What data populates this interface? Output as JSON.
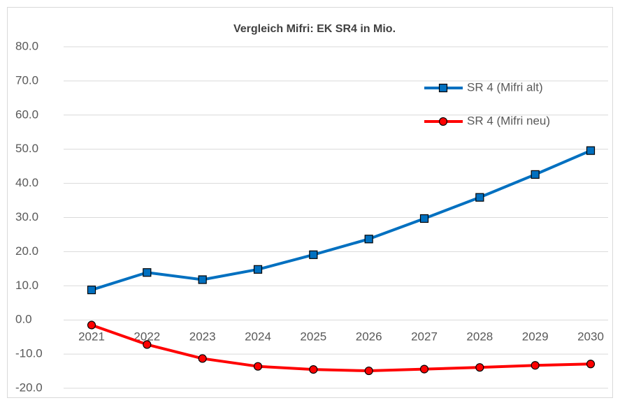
{
  "chart_data": {
    "type": "line",
    "title": "Vergleich Mifri: EK SR4 in Mio.",
    "categories": [
      "2021",
      "2022",
      "2023",
      "2024",
      "2025",
      "2026",
      "2027",
      "2028",
      "2029",
      "2030"
    ],
    "series": [
      {
        "name": "SR 4 (Mifri alt)",
        "color": "#0070c0",
        "marker": "square",
        "values": [
          8.8,
          13.9,
          11.8,
          14.8,
          19.1,
          23.7,
          29.7,
          35.9,
          42.6,
          49.6
        ]
      },
      {
        "name": "SR 4 (Mifri neu)",
        "color": "#ff0000",
        "marker": "circle",
        "values": [
          -1.5,
          -7.2,
          -11.3,
          -13.6,
          -14.5,
          -14.9,
          -14.4,
          -13.9,
          -13.3,
          -12.9
        ]
      }
    ],
    "ylim": [
      -20,
      80
    ],
    "yticks": [
      {
        "value": -20,
        "label": "-20.0"
      },
      {
        "value": -10,
        "label": "-10.0"
      },
      {
        "value": 0,
        "label": "0.0"
      },
      {
        "value": 10,
        "label": "10.0"
      },
      {
        "value": 20,
        "label": "20.0"
      },
      {
        "value": 30,
        "label": "30.0"
      },
      {
        "value": 40,
        "label": "40.0"
      },
      {
        "value": 50,
        "label": "50.0"
      },
      {
        "value": 60,
        "label": "60.0"
      },
      {
        "value": 70,
        "label": "70.0"
      },
      {
        "value": 80,
        "label": "80.0"
      }
    ],
    "grid": true,
    "legend": "upper right"
  }
}
